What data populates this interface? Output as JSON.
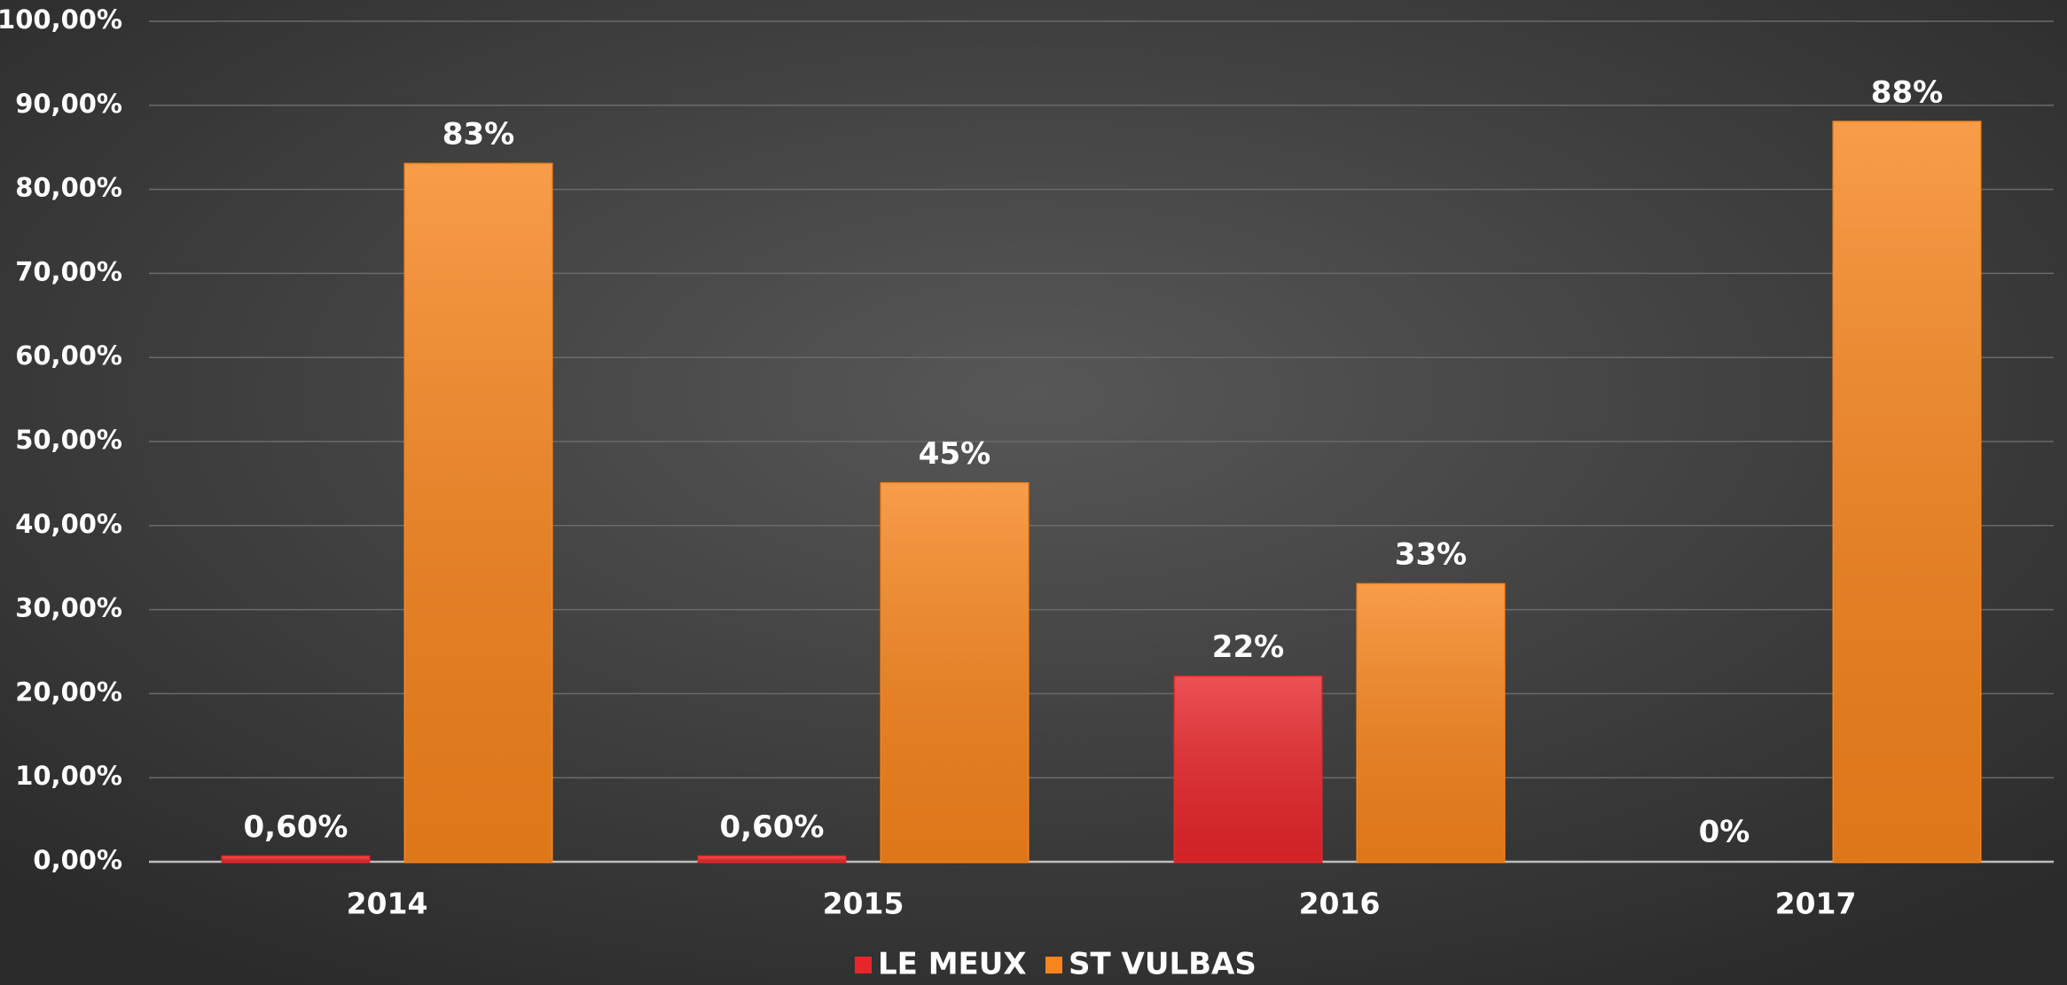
{
  "chart_data": {
    "type": "bar",
    "categories": [
      "2014",
      "2015",
      "2016",
      "2017"
    ],
    "series": [
      {
        "name": "LE MEUX",
        "color": "#e8262a",
        "values": [
          0.6,
          0.6,
          22,
          0
        ],
        "value_labels": [
          "0,60%",
          "0,60%",
          "22%",
          "0%"
        ]
      },
      {
        "name": "ST VULBAS",
        "color": "#f7841c",
        "values": [
          83,
          45,
          33,
          88
        ],
        "value_labels": [
          "83%",
          "45%",
          "33%",
          "88%"
        ]
      }
    ],
    "ylim": [
      0,
      100
    ],
    "yticks": [
      {
        "value": 0,
        "label": "0,00%"
      },
      {
        "value": 10,
        "label": "10,00%"
      },
      {
        "value": 20,
        "label": "20,00%"
      },
      {
        "value": 30,
        "label": "30,00%"
      },
      {
        "value": 40,
        "label": "40,00%"
      },
      {
        "value": 50,
        "label": "50,00%"
      },
      {
        "value": 60,
        "label": "60,00%"
      },
      {
        "value": 70,
        "label": "70,00%"
      },
      {
        "value": 80,
        "label": "80,00%"
      },
      {
        "value": 90,
        "label": "90,00%"
      },
      {
        "value": 100,
        "label": "100,00%"
      }
    ],
    "grid": true,
    "legend": "bottom"
  }
}
